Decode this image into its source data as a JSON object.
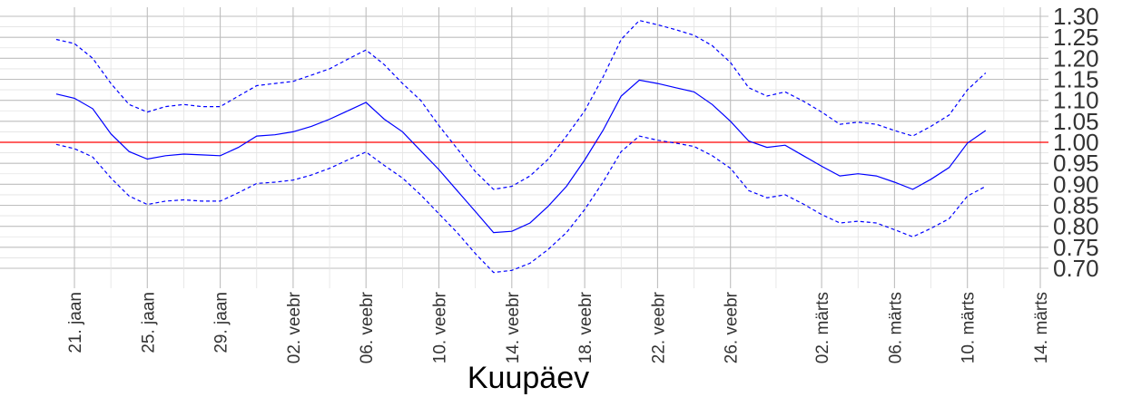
{
  "chart_data": {
    "type": "line",
    "title": "",
    "xlabel": "Kuupäev",
    "ylabel": "",
    "ylim": [
      0.7,
      1.3
    ],
    "xlim": [
      "2020-01-17",
      "2020-03-15"
    ],
    "grid": true,
    "legend": "none",
    "y_ticks": [
      "0.70",
      "0.75",
      "0.80",
      "0.85",
      "0.90",
      "0.95",
      "1.00",
      "1.05",
      "1.10",
      "1.15",
      "1.20",
      "1.25",
      "1.30"
    ],
    "x_ticks": [
      {
        "date": "2020-01-21",
        "label": "21. jaan"
      },
      {
        "date": "2020-01-25",
        "label": "25. jaan"
      },
      {
        "date": "2020-01-29",
        "label": "29. jaan"
      },
      {
        "date": "2020-02-02",
        "label": "02. veebr"
      },
      {
        "date": "2020-02-06",
        "label": "06. veebr"
      },
      {
        "date": "2020-02-10",
        "label": "10. veebr"
      },
      {
        "date": "2020-02-14",
        "label": "14. veebr"
      },
      {
        "date": "2020-02-18",
        "label": "18. veebr"
      },
      {
        "date": "2020-02-22",
        "label": "22. veebr"
      },
      {
        "date": "2020-02-26",
        "label": "26. veebr"
      },
      {
        "date": "2020-03-02",
        "label": "02. märts"
      },
      {
        "date": "2020-03-06",
        "label": "06. märts"
      },
      {
        "date": "2020-03-10",
        "label": "10. märts"
      },
      {
        "date": "2020-03-14",
        "label": "14. märts"
      }
    ],
    "reference_line": {
      "y": 1.0,
      "color": "#ff0000"
    },
    "colors": {
      "main": "#0000ff",
      "reference": "#ff0000",
      "grid": "#bebebe"
    },
    "series": [
      {
        "style": "solid",
        "x": [
          "2020-01-20",
          "2020-01-21",
          "2020-01-22",
          "2020-01-23",
          "2020-01-24",
          "2020-01-25",
          "2020-01-26",
          "2020-01-27",
          "2020-01-28",
          "2020-01-29",
          "2020-01-30",
          "2020-01-31",
          "2020-02-01",
          "2020-02-02",
          "2020-02-03",
          "2020-02-04",
          "2020-02-05",
          "2020-02-06",
          "2020-02-07",
          "2020-02-08",
          "2020-02-09",
          "2020-02-10",
          "2020-02-11",
          "2020-02-12",
          "2020-02-13",
          "2020-02-14",
          "2020-02-15",
          "2020-02-16",
          "2020-02-17",
          "2020-02-18",
          "2020-02-19",
          "2020-02-20",
          "2020-02-21",
          "2020-02-22",
          "2020-02-23",
          "2020-02-24",
          "2020-02-25",
          "2020-02-26",
          "2020-02-27",
          "2020-02-28",
          "2020-02-29",
          "2020-03-01",
          "2020-03-02",
          "2020-03-03",
          "2020-03-04",
          "2020-03-05",
          "2020-03-06",
          "2020-03-07",
          "2020-03-08",
          "2020-03-09",
          "2020-03-10",
          "2020-03-11",
          "2020-03-12"
        ],
        "y": [
          1.115,
          1.105,
          1.08,
          1.02,
          0.978,
          0.96,
          0.968,
          0.972,
          0.97,
          0.968,
          0.988,
          1.015,
          1.018,
          1.025,
          1.038,
          1.055,
          1.075,
          1.095,
          1.055,
          1.025,
          0.98,
          0.935,
          0.885,
          0.835,
          0.785,
          0.788,
          0.808,
          0.848,
          0.895,
          0.958,
          1.028,
          1.11,
          1.148,
          1.14,
          1.13,
          1.12,
          1.09,
          1.05,
          1.003,
          0.988,
          0.993,
          0.968,
          0.943,
          0.92,
          0.925,
          0.92,
          0.905,
          0.888,
          0.912,
          0.94,
          0.998,
          1.028,
          null
        ]
      },
      {
        "style": "dashed",
        "x": [
          "2020-01-20",
          "2020-01-21",
          "2020-01-22",
          "2020-01-23",
          "2020-01-24",
          "2020-01-25",
          "2020-01-26",
          "2020-01-27",
          "2020-01-28",
          "2020-01-29",
          "2020-01-30",
          "2020-01-31",
          "2020-02-01",
          "2020-02-02",
          "2020-02-03",
          "2020-02-04",
          "2020-02-05",
          "2020-02-06",
          "2020-02-07",
          "2020-02-08",
          "2020-02-09",
          "2020-02-10",
          "2020-02-11",
          "2020-02-12",
          "2020-02-13",
          "2020-02-14",
          "2020-02-15",
          "2020-02-16",
          "2020-02-17",
          "2020-02-18",
          "2020-02-19",
          "2020-02-20",
          "2020-02-21",
          "2020-02-22",
          "2020-02-23",
          "2020-02-24",
          "2020-02-25",
          "2020-02-26",
          "2020-02-27",
          "2020-02-28",
          "2020-02-29",
          "2020-03-01",
          "2020-03-02",
          "2020-03-03",
          "2020-03-04",
          "2020-03-05",
          "2020-03-06",
          "2020-03-07",
          "2020-03-08",
          "2020-03-09",
          "2020-03-10",
          "2020-03-11",
          "2020-03-12"
        ],
        "y": [
          1.245,
          1.235,
          1.2,
          1.14,
          1.09,
          1.072,
          1.085,
          1.09,
          1.085,
          1.085,
          1.11,
          1.135,
          1.14,
          1.145,
          1.16,
          1.175,
          1.198,
          1.22,
          1.185,
          1.14,
          1.1,
          1.04,
          0.985,
          0.93,
          0.888,
          0.895,
          0.92,
          0.96,
          1.015,
          1.075,
          1.155,
          1.245,
          1.29,
          1.28,
          1.268,
          1.255,
          1.23,
          1.19,
          1.13,
          1.11,
          1.12,
          1.098,
          1.072,
          1.043,
          1.048,
          1.043,
          1.028,
          1.015,
          1.038,
          1.065,
          1.125,
          1.165,
          null
        ]
      },
      {
        "style": "dashed",
        "x": [
          "2020-01-20",
          "2020-01-21",
          "2020-01-22",
          "2020-01-23",
          "2020-01-24",
          "2020-01-25",
          "2020-01-26",
          "2020-01-27",
          "2020-01-28",
          "2020-01-29",
          "2020-01-30",
          "2020-01-31",
          "2020-02-01",
          "2020-02-02",
          "2020-02-03",
          "2020-02-04",
          "2020-02-05",
          "2020-02-06",
          "2020-02-07",
          "2020-02-08",
          "2020-02-09",
          "2020-02-10",
          "2020-02-11",
          "2020-02-12",
          "2020-02-13",
          "2020-02-14",
          "2020-02-15",
          "2020-02-16",
          "2020-02-17",
          "2020-02-18",
          "2020-02-19",
          "2020-02-20",
          "2020-02-21",
          "2020-02-22",
          "2020-02-23",
          "2020-02-24",
          "2020-02-25",
          "2020-02-26",
          "2020-02-27",
          "2020-02-28",
          "2020-02-29",
          "2020-03-01",
          "2020-03-02",
          "2020-03-03",
          "2020-03-04",
          "2020-03-05",
          "2020-03-06",
          "2020-03-07",
          "2020-03-08",
          "2020-03-09",
          "2020-03-10",
          "2020-03-11",
          "2020-03-12"
        ],
        "y": [
          0.995,
          0.985,
          0.965,
          0.915,
          0.872,
          0.852,
          0.86,
          0.863,
          0.86,
          0.86,
          0.88,
          0.902,
          0.905,
          0.91,
          0.922,
          0.938,
          0.958,
          0.977,
          0.945,
          0.915,
          0.875,
          0.83,
          0.785,
          0.735,
          0.69,
          0.695,
          0.712,
          0.745,
          0.785,
          0.84,
          0.905,
          0.978,
          1.015,
          1.005,
          0.998,
          0.99,
          0.968,
          0.938,
          0.885,
          0.868,
          0.875,
          0.853,
          0.828,
          0.808,
          0.812,
          0.808,
          0.792,
          0.775,
          0.795,
          0.818,
          0.872,
          0.895,
          null
        ]
      }
    ]
  }
}
